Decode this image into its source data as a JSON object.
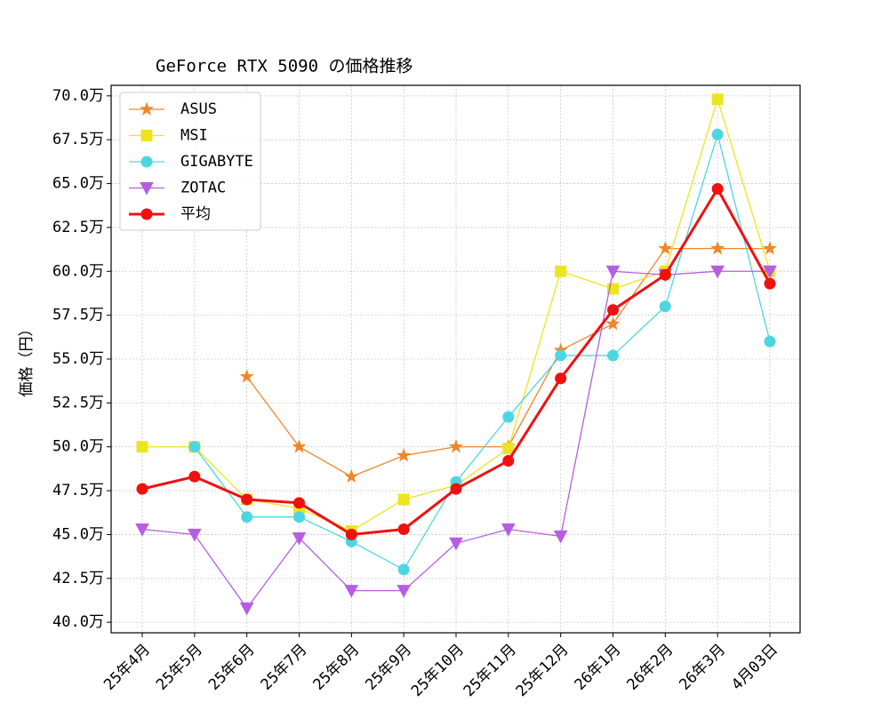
{
  "chart_data": {
    "type": "line",
    "title": "GeForce RTX 5090 の価格推移",
    "y_label": "価格（円）",
    "categories": [
      "25年4月",
      "25年5月",
      "25年6月",
      "25年7月",
      "25年8月",
      "25年9月",
      "25年10月",
      "25年11月",
      "25年12月",
      "26年1月",
      "26年2月",
      "26年3月",
      "4月03日"
    ],
    "series": [
      {
        "name": "ASUS",
        "color": "#f0862a",
        "marker": "star",
        "linewidth": 1.3,
        "values": [
          null,
          null,
          54.0,
          50.0,
          48.3,
          49.5,
          50.0,
          50.0,
          55.5,
          57.0,
          61.3,
          61.3,
          61.3
        ]
      },
      {
        "name": "MSI",
        "color": "#ece41e",
        "marker": "square",
        "linewidth": 1.3,
        "values": [
          50.0,
          50.0,
          47.0,
          46.5,
          45.2,
          47.0,
          47.8,
          49.9,
          60.0,
          59.0,
          60.0,
          69.8,
          60.0
        ]
      },
      {
        "name": "GIGABYTE",
        "color": "#4dd6e2",
        "marker": "circle",
        "linewidth": 1.3,
        "values": [
          null,
          50.0,
          46.0,
          46.0,
          44.6,
          43.0,
          48.0,
          51.7,
          55.2,
          55.2,
          58.0,
          67.8,
          56.0
        ]
      },
      {
        "name": "ZOTAC",
        "color": "#b65ee2",
        "marker": "triangle-down",
        "linewidth": 1.3,
        "values": [
          45.3,
          45.0,
          40.8,
          44.8,
          41.8,
          41.8,
          44.5,
          45.3,
          44.9,
          60.0,
          59.8,
          60.0,
          60.0
        ]
      },
      {
        "name": "平均",
        "color": "#f01010",
        "marker": "circle",
        "linewidth": 3,
        "values": [
          47.6,
          48.3,
          47.0,
          46.8,
          45.0,
          45.3,
          47.6,
          49.2,
          53.9,
          57.8,
          59.8,
          64.7,
          59.3
        ]
      }
    ],
    "ylim": [
      39.4,
      70.6
    ],
    "yticks": [
      {
        "value": 40,
        "label": "40.0万"
      },
      {
        "value": 42.5,
        "label": "42.5万"
      },
      {
        "value": 45,
        "label": "45.0万"
      },
      {
        "value": 47.5,
        "label": "47.5万"
      },
      {
        "value": 50,
        "label": "50.0万"
      },
      {
        "value": 52.5,
        "label": "52.5万"
      },
      {
        "value": 55,
        "label": "55.0万"
      },
      {
        "value": 57.5,
        "label": "57.5万"
      },
      {
        "value": 60,
        "label": "60.0万"
      },
      {
        "value": 62.5,
        "label": "62.5万"
      },
      {
        "value": 65,
        "label": "65.0万"
      },
      {
        "value": 67.5,
        "label": "67.5万"
      },
      {
        "value": 70,
        "label": "70.0万"
      }
    ],
    "grid": true,
    "legend": "upper-left"
  }
}
